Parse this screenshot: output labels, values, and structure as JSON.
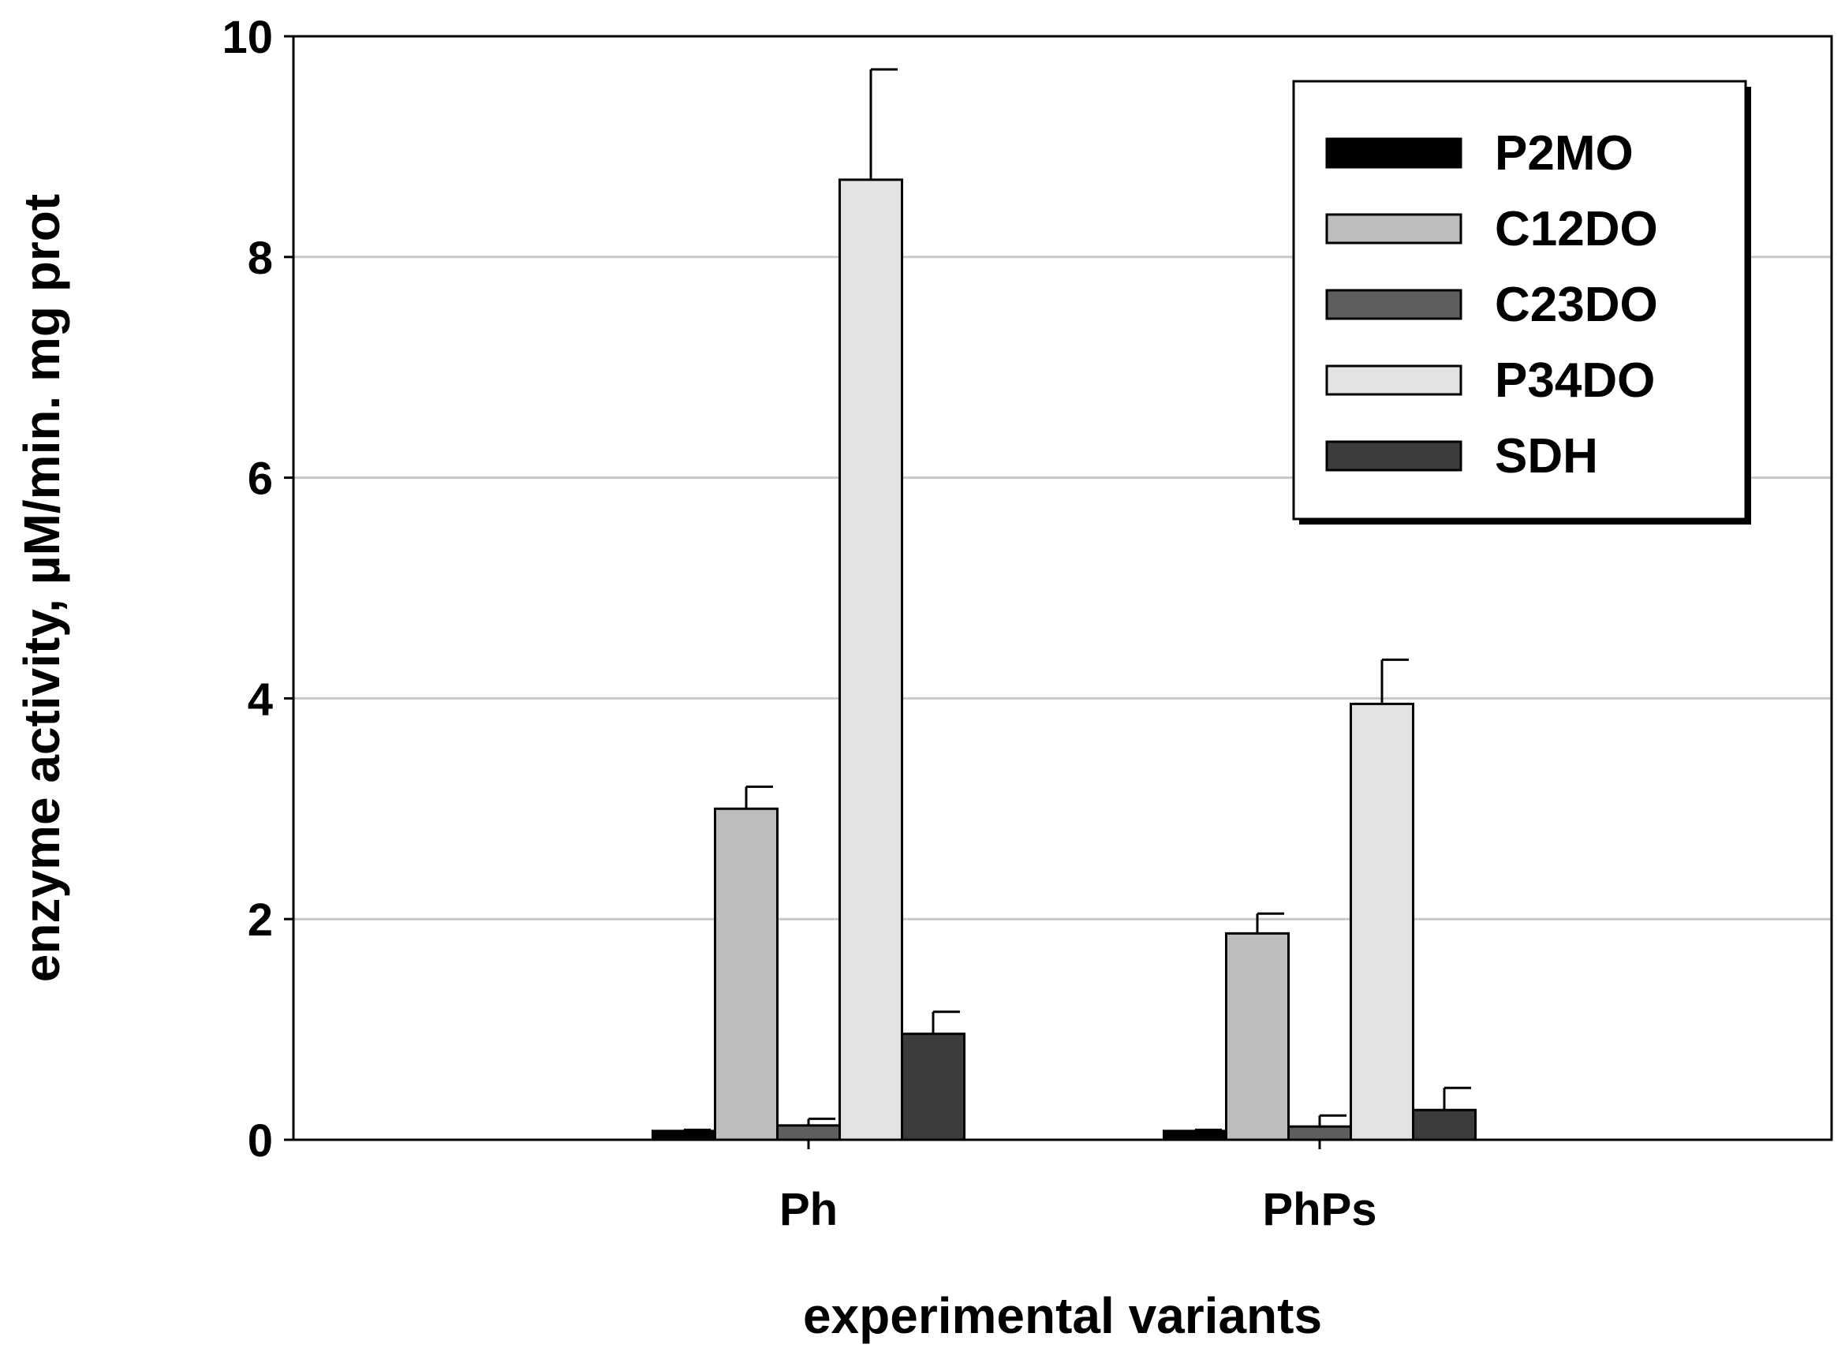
{
  "chart_data": {
    "type": "bar",
    "title": "",
    "xlabel": "experimental variants",
    "ylabel": "enzyme activity, µM/min. mg prot",
    "ylim": [
      0,
      10
    ],
    "yticks": [
      0,
      2,
      4,
      6,
      8,
      10
    ],
    "grid": true,
    "legend_position": "top-right",
    "categories": [
      "Ph",
      "PhPs"
    ],
    "series": [
      {
        "name": "P2MO",
        "color": "#000000",
        "values": [
          0.08,
          0.08
        ],
        "errors": [
          0.01,
          0.01
        ]
      },
      {
        "name": "C12DO",
        "color": "#bdbdbd",
        "values": [
          3.0,
          1.87
        ],
        "errors": [
          0.2,
          0.18
        ]
      },
      {
        "name": "C23DO",
        "color": "#5e5e5e",
        "values": [
          0.13,
          0.12
        ],
        "errors": [
          0.06,
          0.1
        ]
      },
      {
        "name": "P34DO",
        "color": "#e3e3e3",
        "values": [
          8.7,
          3.95
        ],
        "errors": [
          1.0,
          0.4
        ]
      },
      {
        "name": "SDH",
        "color": "#3c3c3c",
        "values": [
          0.96,
          0.27
        ],
        "errors": [
          0.2,
          0.2
        ]
      }
    ]
  }
}
